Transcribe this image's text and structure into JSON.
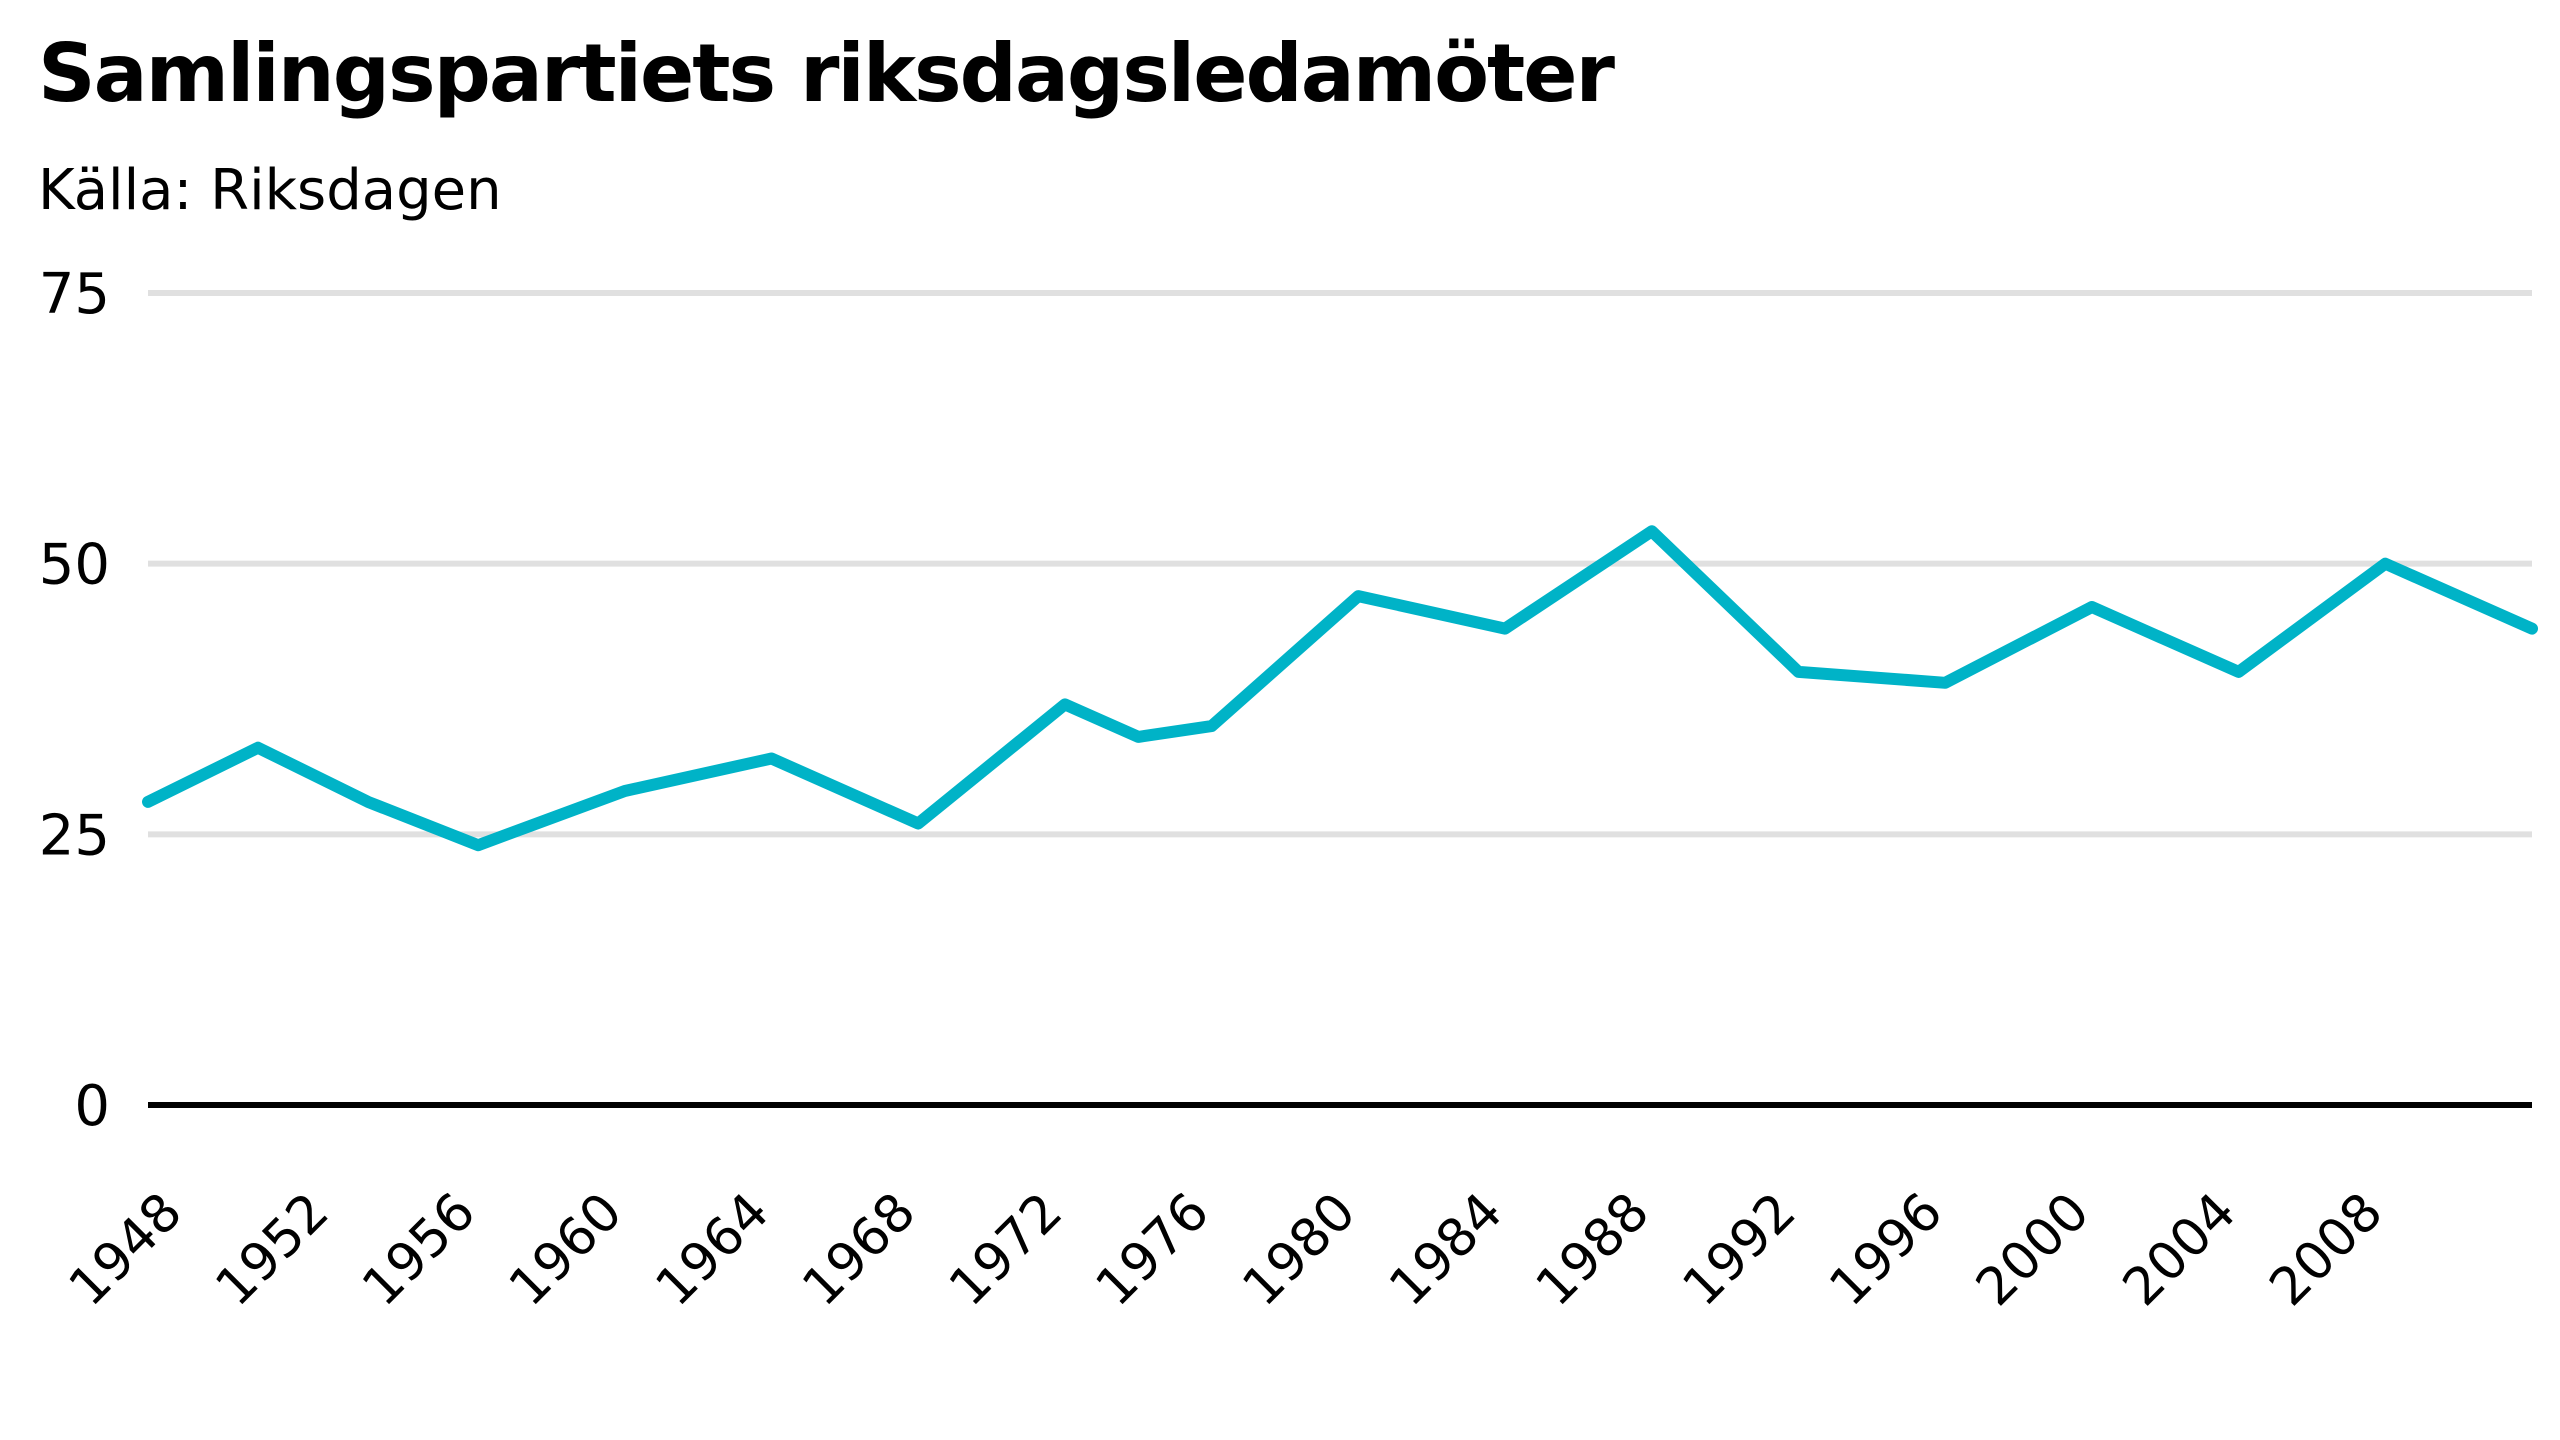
{
  "chart_data": {
    "type": "line",
    "title": "Samlingspartiets riksdagsledamöter",
    "subtitle": "Källa: Riksdagen",
    "xlabel": "",
    "ylabel": "",
    "ylim": [
      0,
      75
    ],
    "y_ticks": [
      0,
      25,
      50,
      75
    ],
    "xlim": [
      1947,
      2012
    ],
    "x_ticks": [
      1948,
      1952,
      1956,
      1960,
      1964,
      1968,
      1972,
      1976,
      1980,
      1984,
      1988,
      1992,
      1996,
      2000,
      2004,
      2008
    ],
    "grid": true,
    "legend": "none",
    "line_color": "#00b3c7",
    "grid_color": "#e0e0e0",
    "axis_color": "#000000",
    "series": [
      {
        "x": [
          1947,
          1950,
          1953,
          1956,
          1960,
          1964,
          1968,
          1972,
          1974,
          1976,
          1980,
          1984,
          1988,
          1992,
          1996,
          2000,
          2004,
          2008,
          2012
        ],
        "values": [
          28,
          33,
          28,
          24,
          29,
          32,
          26,
          37,
          34,
          35,
          47,
          44,
          53,
          40,
          39,
          46,
          40,
          50,
          44
        ]
      }
    ]
  }
}
